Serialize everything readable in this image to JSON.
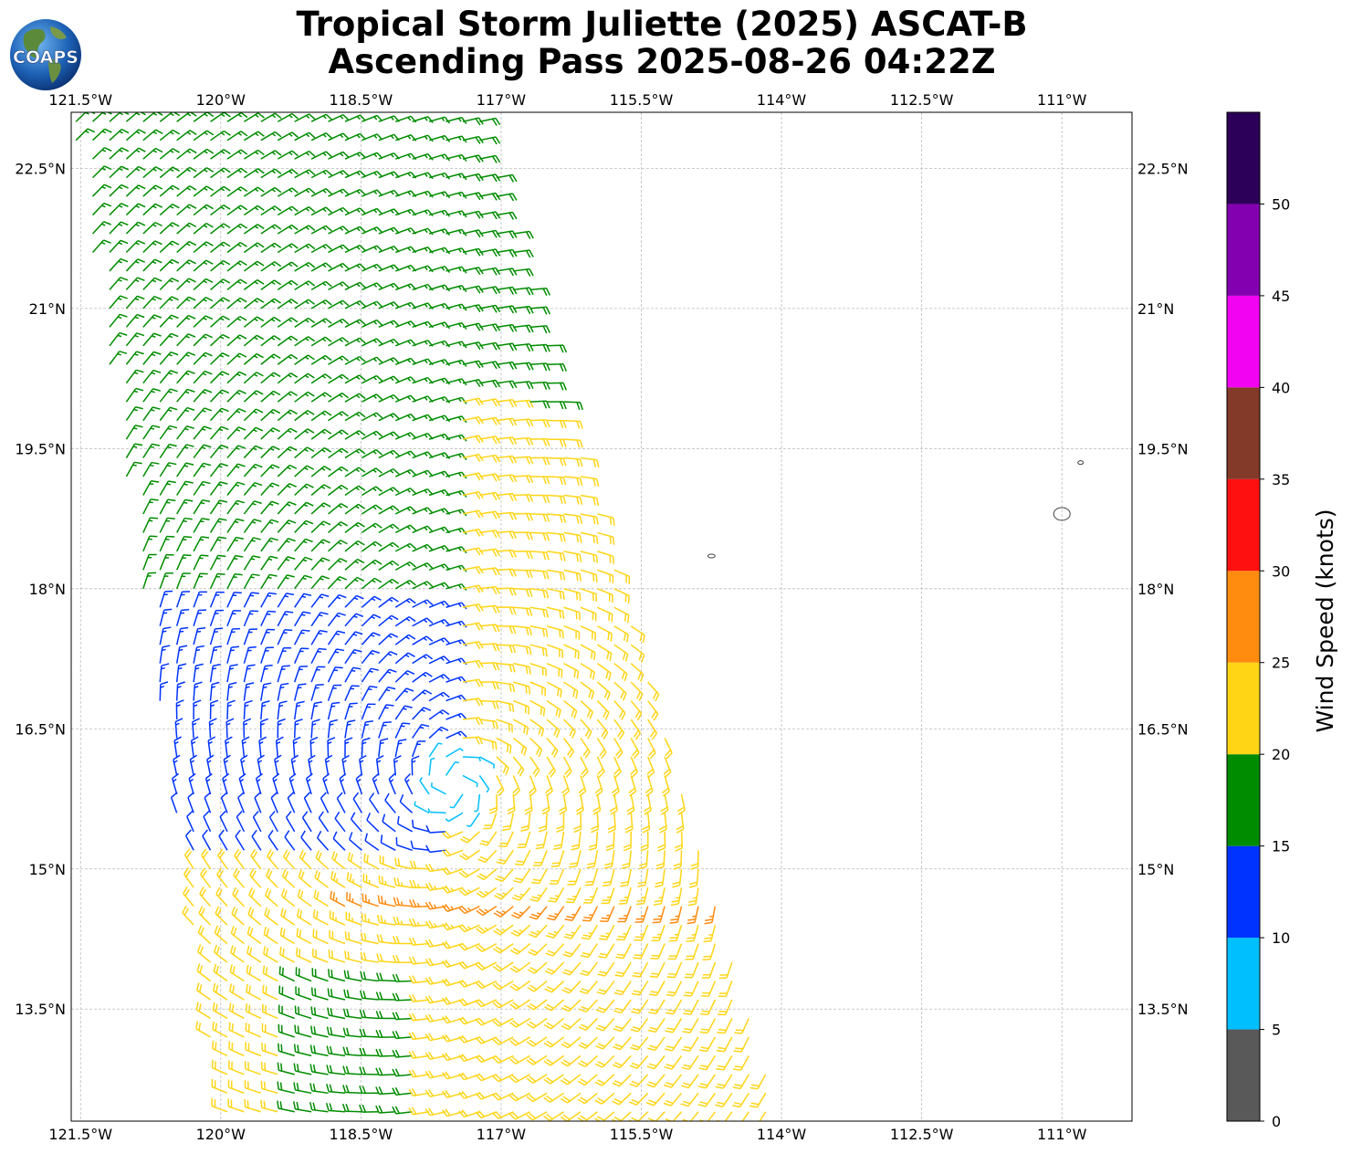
{
  "header": {
    "title_line1": "Tropical Storm Juliette (2025) ASCAT-B",
    "title_line2": "Ascending Pass 2025-08-26 04:22Z",
    "logo_text": "COAPS"
  },
  "map": {
    "lon_range": [
      -121.6,
      -110.25
    ],
    "lat_range": [
      12.3,
      23.1
    ],
    "lon_ticks": [
      {
        "value": -121.5,
        "label": "121.5°W"
      },
      {
        "value": -120.0,
        "label": "120°W"
      },
      {
        "value": -118.5,
        "label": "118.5°W"
      },
      {
        "value": -117.0,
        "label": "117°W"
      },
      {
        "value": -115.5,
        "label": "115.5°W"
      },
      {
        "value": -114.0,
        "label": "114°W"
      },
      {
        "value": -112.5,
        "label": "112.5°W"
      },
      {
        "value": -111.0,
        "label": "111°W"
      }
    ],
    "lat_ticks": [
      {
        "value": 22.5,
        "label": "22.5°N"
      },
      {
        "value": 21.0,
        "label": "21°N"
      },
      {
        "value": 19.5,
        "label": "19.5°N"
      },
      {
        "value": 18.0,
        "label": "18°N"
      },
      {
        "value": 16.5,
        "label": "16.5°N"
      },
      {
        "value": 15.0,
        "label": "15°N"
      },
      {
        "value": 13.5,
        "label": "13.5°N"
      }
    ],
    "gridlines": true,
    "storm_center": {
      "lon": -117.5,
      "lat": 15.9
    },
    "islands": [
      {
        "lon": -111.0,
        "lat": 18.8
      },
      {
        "lon": -110.8,
        "lat": 19.35
      },
      {
        "lon": -114.75,
        "lat": 18.35
      }
    ]
  },
  "colorbar": {
    "label": "Wind Speed (knots)",
    "bounds": [
      0,
      5,
      10,
      15,
      20,
      25,
      30,
      35,
      40,
      45,
      50,
      55
    ],
    "tick_labels": [
      "0",
      "5",
      "10",
      "15",
      "20",
      "25",
      "30",
      "35",
      "40",
      "45",
      "50"
    ],
    "colors": [
      "#595959",
      "#00bfff",
      "#0033ff",
      "#008c00",
      "#ffd516",
      "#ff8c0f",
      "#ff1010",
      "#833a29",
      "#f203f2",
      "#8200b0",
      "#2c0058"
    ]
  },
  "chart_data": {
    "type": "wind-barbs",
    "units": "knots",
    "swath": {
      "corners": [
        [
          -121.6,
          23.1
        ],
        [
          -117.2,
          23.1
        ],
        [
          -114.0,
          12.3
        ],
        [
          -120.0,
          12.3
        ]
      ]
    },
    "storm_center": {
      "lon": -117.5,
      "lat": 15.9
    },
    "regimes": [
      {
        "region": "northwest swath",
        "speed_range": [
          15,
          20
        ],
        "direction": "northerly"
      },
      {
        "region": "west of center",
        "speed_range": [
          10,
          15
        ],
        "direction": "northerly"
      },
      {
        "region": "southwest near center",
        "speed_range": [
          5,
          10
        ],
        "direction": "variable"
      },
      {
        "region": "east of center",
        "speed_range": [
          20,
          25
        ],
        "direction": "southerly"
      },
      {
        "region": "south of center",
        "speed_range": [
          20,
          30
        ],
        "direction": "westerly"
      }
    ]
  }
}
